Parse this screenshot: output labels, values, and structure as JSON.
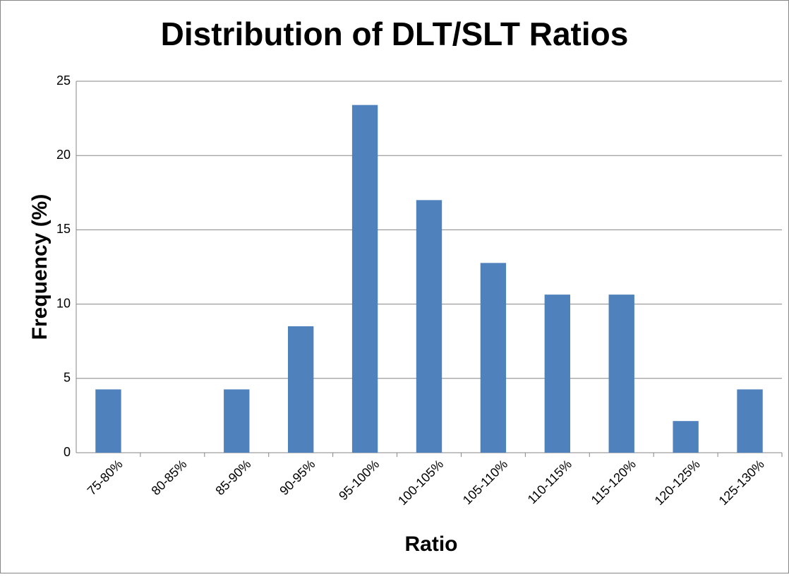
{
  "chart_data": {
    "type": "bar",
    "title": "Distribution of DLT/SLT Ratios",
    "x_label": "Ratio",
    "y_label": "Frequency (%)",
    "categories": [
      "75-80%",
      "80-85%",
      "85-90%",
      "90-95%",
      "95-100%",
      "100-105%",
      "105-110%",
      "110-115%",
      "115-120%",
      "120-125%",
      "125-130%"
    ],
    "values": [
      4.26,
      0,
      4.26,
      8.51,
      23.4,
      17.0,
      12.77,
      10.64,
      10.64,
      2.13,
      4.26
    ],
    "color": "#4f81bd",
    "ylim": [
      0,
      25
    ],
    "yticks": [
      0,
      5,
      10,
      15,
      20,
      25
    ],
    "grid": true
  }
}
